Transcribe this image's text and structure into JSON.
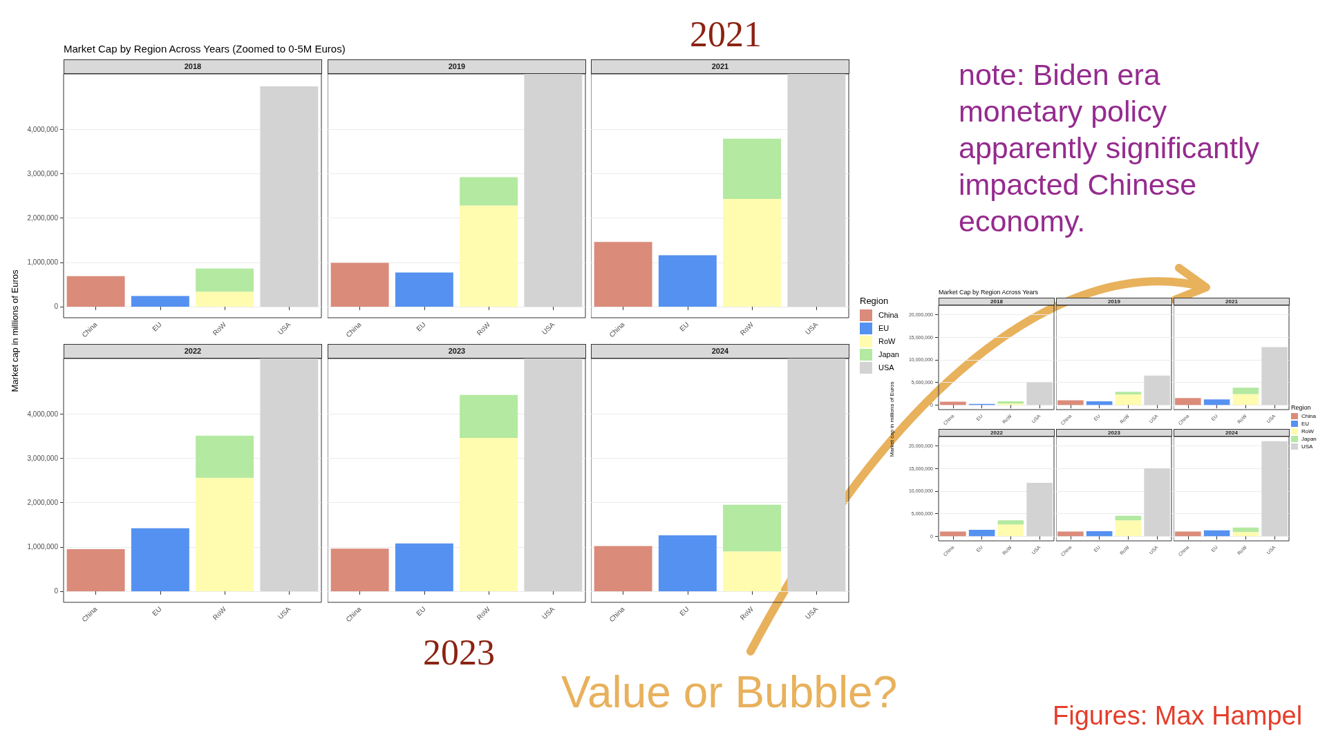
{
  "chart_data": [
    {
      "type": "bar",
      "title": "2018",
      "categories": [
        "China",
        "EU",
        "RoW",
        "USA"
      ],
      "stacked": true,
      "ylabel": "Market cap in millions of Euros",
      "annotations": [
        "Market Cap by Region Across Years (Zoomed to 0-5M Euros)",
        "2021",
        "2023",
        "note: Biden era monetary policy apparently significantly impacted Chinese economy.",
        "Value or Bubble?",
        "Figures: Max Hampel"
      ],
      "ylim": [
        -250000,
        5250000
      ],
      "yticks": [
        {
          "value": 0,
          "label": "0"
        },
        {
          "value": 1000000,
          "label": "1,000,000"
        },
        {
          "value": 2000000,
          "label": "2,000,000"
        },
        {
          "value": 3000000,
          "label": "3,000,000"
        },
        {
          "value": 4000000,
          "label": "4,000,000"
        }
      ],
      "grid": "y",
      "series": [
        {
          "color": "#db8b7a",
          "values": [
            690000,
            null,
            null,
            null
          ]
        },
        {
          "color": "#5591f0",
          "values": [
            null,
            240000,
            null,
            null
          ]
        },
        {
          "color": "#fffcb0",
          "values": [
            null,
            null,
            340000,
            null
          ]
        },
        {
          "color": "#b3e9a0",
          "values": [
            null,
            null,
            520000,
            null
          ]
        },
        {
          "color": "#d3d3d3",
          "values": [
            null,
            null,
            null,
            4970000
          ]
        }
      ]
    },
    {
      "type": "bar",
      "title": "2019",
      "categories": [
        "China",
        "EU",
        "RoW",
        "USA"
      ],
      "stacked": true,
      "tick_labels": "x",
      "ylim": [
        -250000,
        5250000
      ],
      "yticks": [
        0,
        1000000,
        2000000,
        3000000,
        4000000
      ],
      "grid": "y",
      "series": [
        {
          "color": "#db8b7a",
          "values": [
            990000,
            null,
            null,
            null
          ]
        },
        {
          "color": "#5591f0",
          "values": [
            null,
            770000,
            null,
            null
          ]
        },
        {
          "color": "#fffcb0",
          "values": [
            null,
            null,
            2280000,
            null
          ]
        },
        {
          "color": "#b3e9a0",
          "values": [
            null,
            null,
            640000,
            null
          ]
        },
        {
          "color": "#d3d3d3",
          "values": [
            null,
            null,
            null,
            5250000
          ]
        }
      ]
    },
    {
      "type": "bar",
      "title": "2021",
      "categories": [
        "China",
        "EU",
        "RoW",
        "USA"
      ],
      "stacked": true,
      "tick_labels": "x",
      "ylim": [
        -250000,
        5250000
      ],
      "yticks": [
        0,
        1000000,
        2000000,
        3000000,
        4000000
      ],
      "grid": "y",
      "series": [
        {
          "color": "#db8b7a",
          "values": [
            1460000,
            null,
            null,
            null
          ]
        },
        {
          "color": "#5591f0",
          "values": [
            null,
            1160000,
            null,
            null
          ]
        },
        {
          "color": "#fffcb0",
          "values": [
            null,
            null,
            2430000,
            null
          ]
        },
        {
          "color": "#b3e9a0",
          "values": [
            null,
            null,
            1360000,
            null
          ]
        },
        {
          "color": "#d3d3d3",
          "values": [
            null,
            null,
            null,
            5250000
          ]
        }
      ]
    },
    {
      "type": "bar",
      "title": "2022",
      "categories": [
        "China",
        "EU",
        "RoW",
        "USA"
      ],
      "stacked": true,
      "ylim": [
        -250000,
        5250000
      ],
      "yticks": [
        {
          "value": 0,
          "label": "0"
        },
        {
          "value": 1000000,
          "label": "1,000,000"
        },
        {
          "value": 2000000,
          "label": "2,000,000"
        },
        {
          "value": 3000000,
          "label": "3,000,000"
        },
        {
          "value": 4000000,
          "label": "4,000,000"
        }
      ],
      "grid": "y",
      "series": [
        {
          "color": "#db8b7a",
          "values": [
            950000,
            null,
            null,
            null
          ]
        },
        {
          "color": "#5591f0",
          "values": [
            null,
            1420000,
            null,
            null
          ]
        },
        {
          "color": "#fffcb0",
          "values": [
            null,
            null,
            2560000,
            null
          ]
        },
        {
          "color": "#b3e9a0",
          "values": [
            null,
            null,
            950000,
            null
          ]
        },
        {
          "color": "#d3d3d3",
          "values": [
            null,
            null,
            null,
            5250000
          ]
        }
      ]
    },
    {
      "type": "bar",
      "title": "2023",
      "categories": [
        "China",
        "EU",
        "RoW",
        "USA"
      ],
      "stacked": true,
      "tick_labels": "x",
      "ylim": [
        -250000,
        5250000
      ],
      "yticks": [
        0,
        1000000,
        2000000,
        3000000,
        4000000
      ],
      "grid": "y",
      "series": [
        {
          "color": "#db8b7a",
          "values": [
            960000,
            null,
            null,
            null
          ]
        },
        {
          "color": "#5591f0",
          "values": [
            null,
            1080000,
            null,
            null
          ]
        },
        {
          "color": "#fffcb0",
          "values": [
            null,
            null,
            3460000,
            null
          ]
        },
        {
          "color": "#b3e9a0",
          "values": [
            null,
            null,
            970000,
            null
          ]
        },
        {
          "color": "#d3d3d3",
          "values": [
            null,
            null,
            null,
            5250000
          ]
        }
      ]
    },
    {
      "type": "bar",
      "title": "2024",
      "categories": [
        "China",
        "EU",
        "RoW",
        "USA"
      ],
      "stacked": true,
      "tick_labels": "x",
      "legend": "right",
      "legend_title": "Region",
      "ylim": [
        -250000,
        5250000
      ],
      "yticks": [
        0,
        1000000,
        2000000,
        3000000,
        4000000
      ],
      "grid": "y",
      "series": [
        {
          "name": "China",
          "color": "#db8b7a",
          "values": [
            1020000,
            null,
            null,
            null
          ]
        },
        {
          "name": "EU",
          "color": "#5591f0",
          "values": [
            null,
            1260000,
            null,
            null
          ]
        },
        {
          "name": "RoW",
          "color": "#fffcb0",
          "values": [
            null,
            null,
            900000,
            null
          ]
        },
        {
          "name": "Japan",
          "color": "#b3e9a0",
          "values": [
            null,
            null,
            1050000,
            null
          ]
        },
        {
          "name": "USA",
          "color": "#d3d3d3",
          "values": [
            null,
            null,
            null,
            5250000
          ]
        }
      ]
    },
    {
      "type": "bar",
      "title": "2018",
      "categories": [
        "China",
        "EU",
        "RoW",
        "USA"
      ],
      "stacked": true,
      "ylabel": "Market cap in millions of Euros",
      "annotations": [
        "Market Cap by Region Across Years"
      ],
      "ylim": [
        -1050000,
        22050000
      ],
      "yticks": [
        {
          "value": 0,
          "label": "0"
        },
        {
          "value": 5000000,
          "label": "5,000,000"
        },
        {
          "value": 10000000,
          "label": "10,000,000"
        },
        {
          "value": 15000000,
          "label": "15,000,000"
        },
        {
          "value": 20000000,
          "label": "20,000,000"
        }
      ],
      "grid": "y",
      "series": [
        {
          "color": "#db8b7a",
          "values": [
            700000,
            null,
            null,
            null
          ]
        },
        {
          "color": "#5591f0",
          "values": [
            null,
            200000,
            null,
            null
          ]
        },
        {
          "color": "#fffcb0",
          "values": [
            null,
            null,
            300000,
            null
          ]
        },
        {
          "color": "#b3e9a0",
          "values": [
            null,
            null,
            500000,
            null
          ]
        },
        {
          "color": "#d3d3d3",
          "values": [
            null,
            null,
            null,
            5000000
          ]
        }
      ]
    },
    {
      "type": "bar",
      "title": "2019",
      "categories": [
        "China",
        "EU",
        "RoW",
        "USA"
      ],
      "stacked": true,
      "tick_labels": "x",
      "ylim": [
        -1050000,
        22050000
      ],
      "yticks": [
        0,
        5000000,
        10000000,
        15000000,
        20000000
      ],
      "grid": "y",
      "series": [
        {
          "color": "#db8b7a",
          "values": [
            1000000,
            null,
            null,
            null
          ]
        },
        {
          "color": "#5591f0",
          "values": [
            null,
            800000,
            null,
            null
          ]
        },
        {
          "color": "#fffcb0",
          "values": [
            null,
            null,
            2300000,
            null
          ]
        },
        {
          "color": "#b3e9a0",
          "values": [
            null,
            null,
            600000,
            null
          ]
        },
        {
          "color": "#d3d3d3",
          "values": [
            null,
            null,
            null,
            6500000
          ]
        }
      ]
    },
    {
      "type": "bar",
      "title": "2021",
      "categories": [
        "China",
        "EU",
        "RoW",
        "USA"
      ],
      "stacked": true,
      "tick_labels": "x",
      "ylim": [
        -1050000,
        22050000
      ],
      "yticks": [
        0,
        5000000,
        10000000,
        15000000,
        20000000
      ],
      "grid": "y",
      "series": [
        {
          "color": "#db8b7a",
          "values": [
            1500000,
            null,
            null,
            null
          ]
        },
        {
          "color": "#5591f0",
          "values": [
            null,
            1200000,
            null,
            null
          ]
        },
        {
          "color": "#fffcb0",
          "values": [
            null,
            null,
            2400000,
            null
          ]
        },
        {
          "color": "#b3e9a0",
          "values": [
            null,
            null,
            1400000,
            null
          ]
        },
        {
          "color": "#d3d3d3",
          "values": [
            null,
            null,
            null,
            12800000
          ]
        }
      ]
    },
    {
      "type": "bar",
      "title": "2022",
      "categories": [
        "China",
        "EU",
        "RoW",
        "USA"
      ],
      "stacked": true,
      "ylim": [
        -1050000,
        22050000
      ],
      "yticks": [
        {
          "value": 0,
          "label": "0"
        },
        {
          "value": 5000000,
          "label": "5,000,000"
        },
        {
          "value": 10000000,
          "label": "10,000,000"
        },
        {
          "value": 15000000,
          "label": "15,000,000"
        },
        {
          "value": 20000000,
          "label": "20,000,000"
        }
      ],
      "grid": "y",
      "series": [
        {
          "color": "#db8b7a",
          "values": [
            1000000,
            null,
            null,
            null
          ]
        },
        {
          "color": "#5591f0",
          "values": [
            null,
            1400000,
            null,
            null
          ]
        },
        {
          "color": "#fffcb0",
          "values": [
            null,
            null,
            2600000,
            null
          ]
        },
        {
          "color": "#b3e9a0",
          "values": [
            null,
            null,
            900000,
            null
          ]
        },
        {
          "color": "#d3d3d3",
          "values": [
            null,
            null,
            null,
            11800000
          ]
        }
      ]
    },
    {
      "type": "bar",
      "title": "2023",
      "categories": [
        "China",
        "EU",
        "RoW",
        "USA"
      ],
      "stacked": true,
      "tick_labels": "x",
      "ylim": [
        -1050000,
        22050000
      ],
      "yticks": [
        0,
        5000000,
        10000000,
        15000000,
        20000000
      ],
      "grid": "y",
      "series": [
        {
          "color": "#db8b7a",
          "values": [
            1000000,
            null,
            null,
            null
          ]
        },
        {
          "color": "#5591f0",
          "values": [
            null,
            1100000,
            null,
            null
          ]
        },
        {
          "color": "#fffcb0",
          "values": [
            null,
            null,
            3500000,
            null
          ]
        },
        {
          "color": "#b3e9a0",
          "values": [
            null,
            null,
            1000000,
            null
          ]
        },
        {
          "color": "#d3d3d3",
          "values": [
            null,
            null,
            null,
            15000000
          ]
        }
      ]
    },
    {
      "type": "bar",
      "title": "2024",
      "categories": [
        "China",
        "EU",
        "RoW",
        "USA"
      ],
      "stacked": true,
      "tick_labels": "x",
      "legend": "right",
      "legend_title": "Region",
      "ylim": [
        -1050000,
        22050000
      ],
      "yticks": [
        0,
        5000000,
        10000000,
        15000000,
        20000000
      ],
      "grid": "y",
      "series": [
        {
          "name": "China",
          "color": "#db8b7a",
          "values": [
            1000000,
            null,
            null,
            null
          ]
        },
        {
          "name": "EU",
          "color": "#5591f0",
          "values": [
            null,
            1300000,
            null,
            null
          ]
        },
        {
          "name": "RoW",
          "color": "#fffcb0",
          "values": [
            null,
            null,
            900000,
            null
          ]
        },
        {
          "name": "Japan",
          "color": "#b3e9a0",
          "values": [
            null,
            null,
            1000000,
            null
          ]
        },
        {
          "name": "USA",
          "color": "#d3d3d3",
          "values": [
            null,
            null,
            null,
            21000000
          ]
        }
      ]
    }
  ]
}
